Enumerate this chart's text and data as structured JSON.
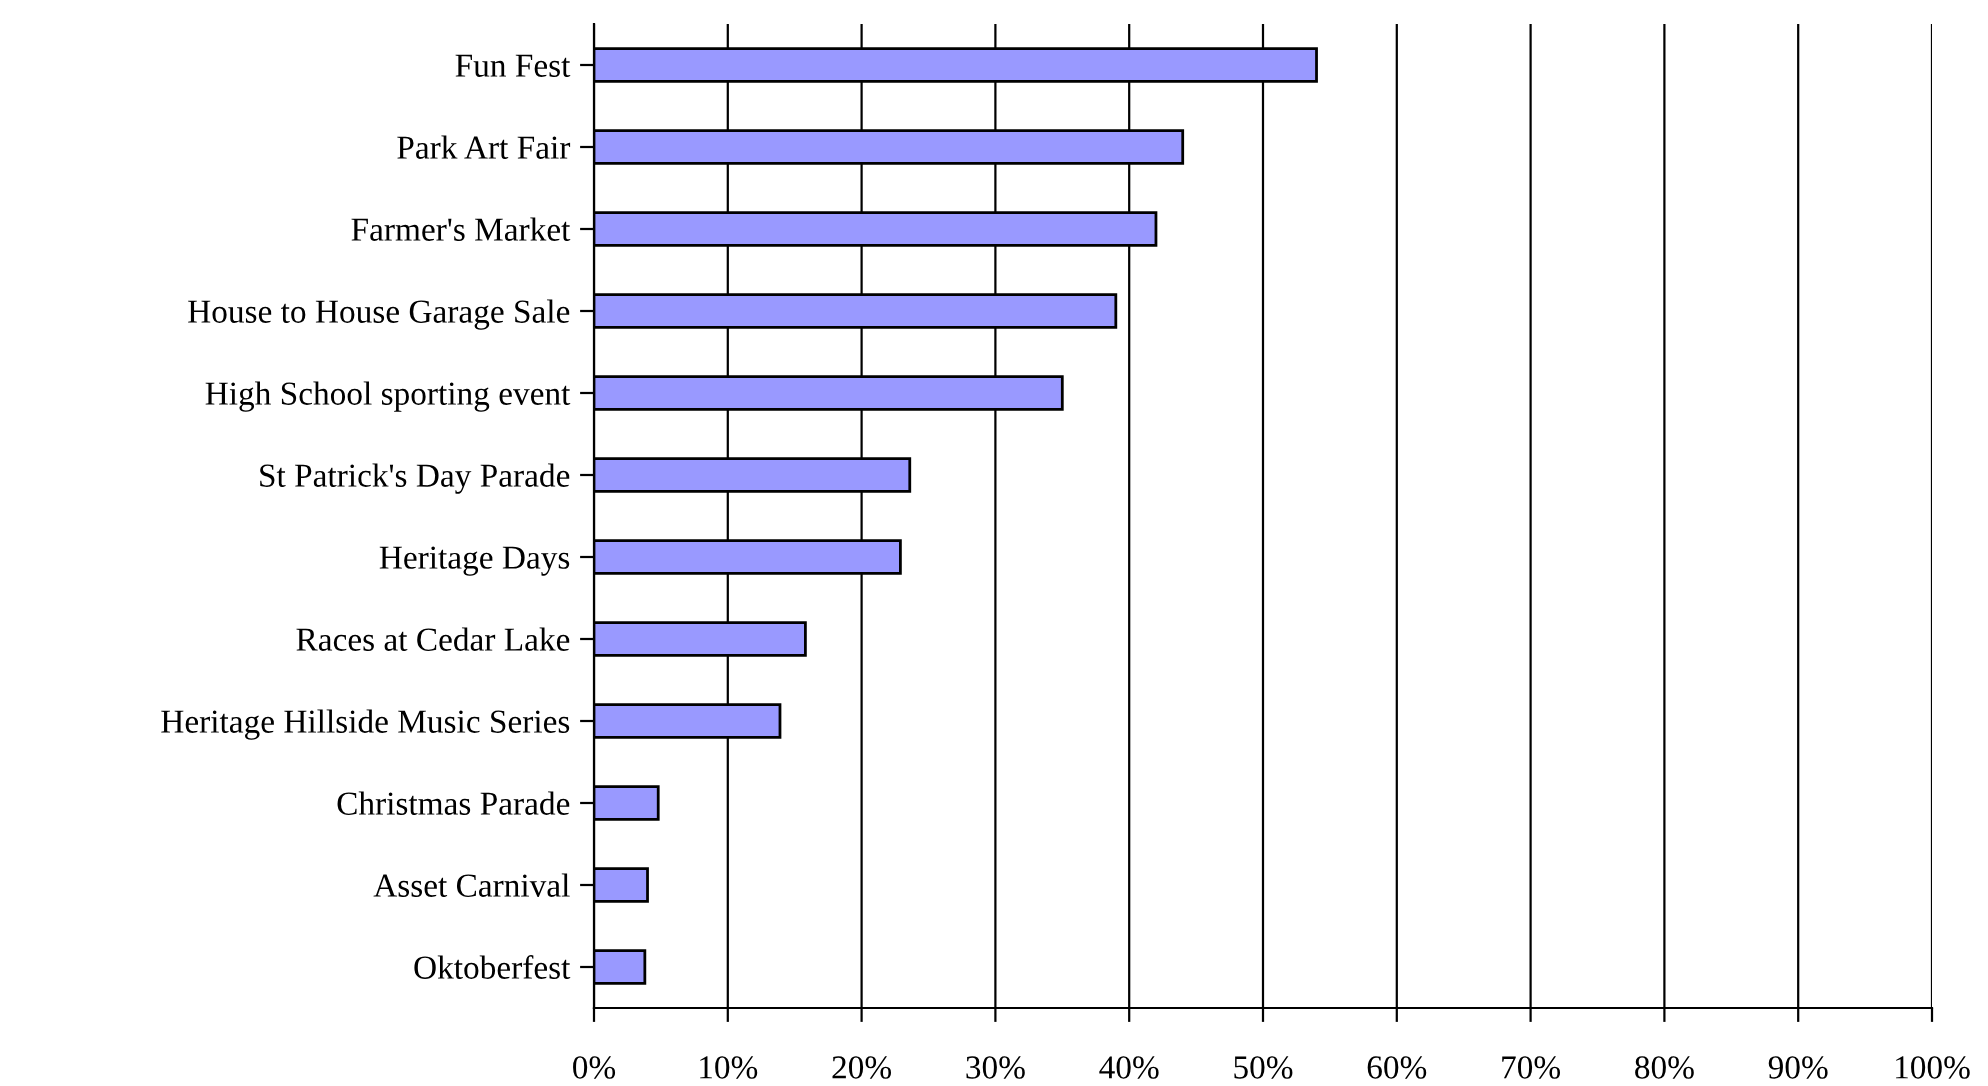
{
  "chart_data": {
    "type": "bar",
    "orientation": "horizontal",
    "categories": [
      "Fun Fest",
      "Park Art Fair",
      "Farmer's Market",
      "House to House Garage Sale",
      "High School sporting event",
      "St Patrick's Day Parade",
      "Heritage Days",
      "Races at Cedar Lake",
      "Heritage Hillside Music Series",
      "Christmas Parade",
      "Asset Carnival",
      "Oktoberfest"
    ],
    "values": [
      54,
      44,
      42,
      39,
      35,
      23.6,
      22.9,
      15.8,
      13.9,
      4.8,
      4.0,
      3.8
    ],
    "color": "#9999ff",
    "xlim": [
      0,
      100
    ],
    "xticks": [
      {
        "value": 0,
        "label": "0%"
      },
      {
        "value": 10,
        "label": "10%"
      },
      {
        "value": 20,
        "label": "20%"
      },
      {
        "value": 30,
        "label": "30%"
      },
      {
        "value": 40,
        "label": "40%"
      },
      {
        "value": 50,
        "label": "50%"
      },
      {
        "value": 60,
        "label": "60%"
      },
      {
        "value": 70,
        "label": "70%"
      },
      {
        "value": 80,
        "label": "80%"
      },
      {
        "value": 90,
        "label": "90%"
      },
      {
        "value": 100,
        "label": "100%"
      }
    ],
    "grid": "x",
    "legend": false
  }
}
